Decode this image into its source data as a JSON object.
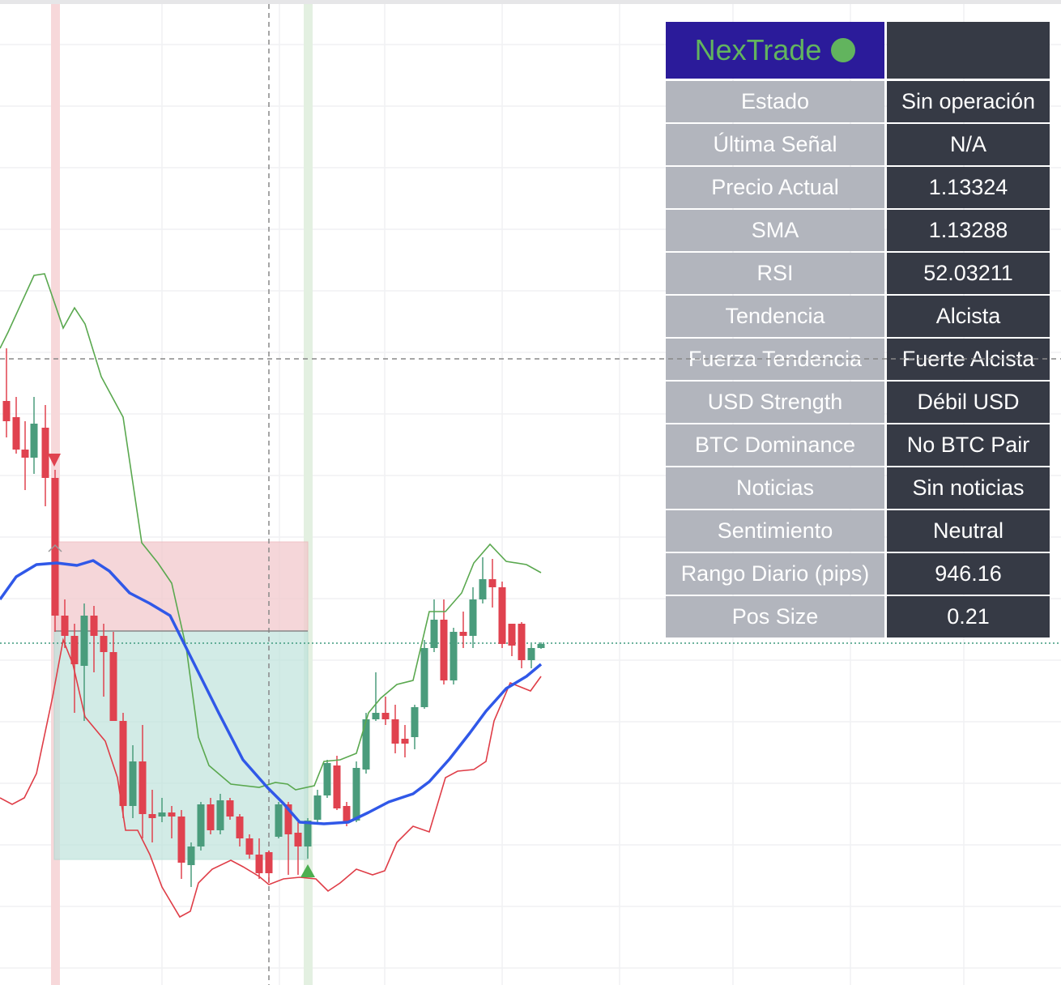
{
  "panel": {
    "title": "NexTrade",
    "rows": [
      {
        "label": "Estado",
        "value": "Sin operación"
      },
      {
        "label": "Última Señal",
        "value": "N/A"
      },
      {
        "label": "Precio Actual",
        "value": "1.13324"
      },
      {
        "label": "SMA",
        "value": "1.13288"
      },
      {
        "label": "RSI",
        "value": "52.03211"
      },
      {
        "label": "Tendencia",
        "value": "Alcista"
      },
      {
        "label": "Fuerza Tendencia",
        "value": "Fuerte Alcista"
      },
      {
        "label": "USD Strength",
        "value": "Débil USD"
      },
      {
        "label": "BTC Dominance",
        "value": "No BTC Pair"
      },
      {
        "label": "Noticias",
        "value": "Sin noticias"
      },
      {
        "label": "Sentimiento",
        "value": "Neutral"
      },
      {
        "label": "Rango Diario (pips)",
        "value": "946.16"
      },
      {
        "label": "Pos Size",
        "value": "0.21"
      }
    ]
  }
}
